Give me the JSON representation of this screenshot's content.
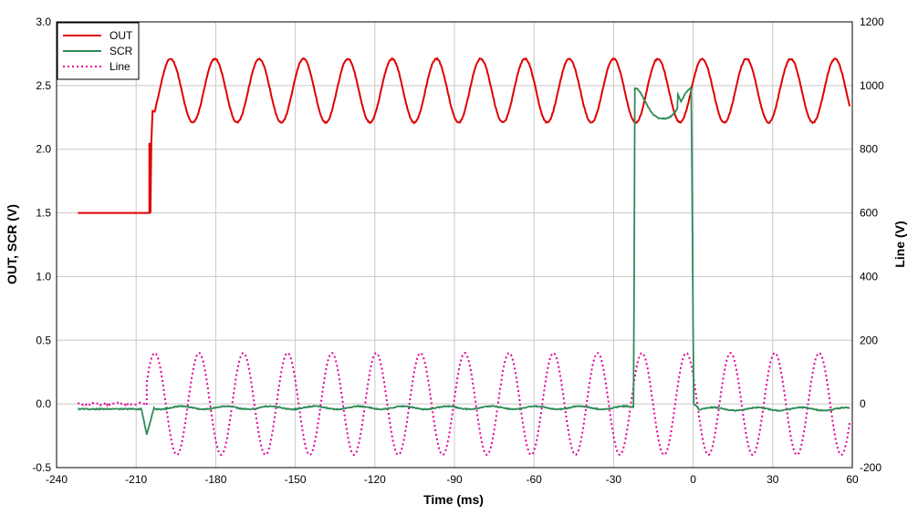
{
  "chart_data": {
    "type": "line",
    "title": "",
    "xlabel": "Time (ms)",
    "ylabel_left": "OUT, SCR (V)",
    "ylabel_right": "Line (V)",
    "xlim": [
      -240,
      60
    ],
    "ylim_left": [
      -0.5,
      3.0
    ],
    "ylim_right": [
      -200,
      1200
    ],
    "grid": true,
    "legend_position": "top-left",
    "x_ticks": [
      -240,
      -210,
      -180,
      -150,
      -120,
      -90,
      -60,
      -30,
      0,
      30,
      60
    ],
    "x_tick_labels": [
      "-240",
      "-210",
      "-180",
      "-150",
      "-120",
      "-90",
      "-60",
      "-30",
      "0",
      "30",
      "60"
    ],
    "y_left_ticks": [
      -0.5,
      0.0,
      0.5,
      1.0,
      1.5,
      2.0,
      2.5,
      3.0
    ],
    "y_left_tick_labels": [
      "-0.5",
      "0.0",
      "0.5",
      "1.0",
      "1.5",
      "2.0",
      "2.5",
      "3.0"
    ],
    "y_right_ticks": [
      -200,
      0,
      200,
      400,
      600,
      800,
      1000,
      1200
    ],
    "y_right_tick_labels": [
      "-200",
      "0",
      "200",
      "400",
      "600",
      "800",
      "1000",
      "1200"
    ],
    "series": [
      {
        "name": "OUT",
        "axis": "left",
        "color": "#e00000",
        "style": "solid",
        "segments": [
          {
            "x_start": -232,
            "x_end": -205,
            "value": 1.5
          },
          {
            "x_start": -205,
            "x_end": -203,
            "value": "step 1.5 -> 2.3"
          },
          {
            "x_start": -203,
            "x_end": 59,
            "mean": 2.46,
            "amplitude": 0.25,
            "period_ms": 16.7,
            "first_peak_ms": -197
          }
        ]
      },
      {
        "name": "SCR",
        "axis": "left",
        "color": "#2e8b57",
        "style": "solid",
        "baseline": -0.04,
        "dip": {
          "x": -206,
          "value": -0.24
        },
        "high_interval": {
          "x_start": -22,
          "x_end": 0,
          "value_range": [
            2.2,
            2.48
          ]
        }
      },
      {
        "name": "Line",
        "axis": "right",
        "color": "#e0009a",
        "style": "dotted",
        "segments": [
          {
            "x_start": -232,
            "x_end": -206,
            "value": 0
          },
          {
            "x_start": -206,
            "x_end": 59,
            "amplitude": 160,
            "period_ms": 16.7,
            "first_peak_ms": -203
          }
        ]
      }
    ]
  }
}
